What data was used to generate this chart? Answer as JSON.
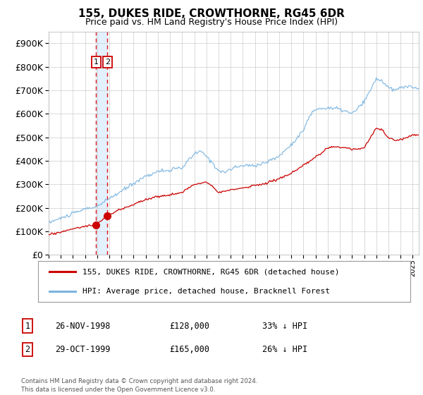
{
  "title": "155, DUKES RIDE, CROWTHORNE, RG45 6DR",
  "subtitle": "Price paid vs. HM Land Registry's House Price Index (HPI)",
  "legend_entry1": "155, DUKES RIDE, CROWTHORNE, RG45 6DR (detached house)",
  "legend_entry2": "HPI: Average price, detached house, Bracknell Forest",
  "sale1_date": "26-NOV-1998",
  "sale1_price": 128000,
  "sale1_label": "33% ↓ HPI",
  "sale2_date": "29-OCT-1999",
  "sale2_price": 165000,
  "sale2_label": "26% ↓ HPI",
  "footer": "Contains HM Land Registry data © Crown copyright and database right 2024.\nThis data is licensed under the Open Government Licence v3.0.",
  "hpi_color": "#7ab4e0",
  "price_color": "#cc0000",
  "marker_color": "#cc0000",
  "vline_color": "#dd0000",
  "shade_color": "#ddeeff",
  "ylim": [
    0,
    950000
  ],
  "yticks": [
    0,
    100000,
    200000,
    300000,
    400000,
    500000,
    600000,
    700000,
    800000,
    900000
  ],
  "background_color": "#ffffff",
  "grid_color": "#cccccc",
  "sale1_year": 1998.917,
  "sale2_year": 1999.833,
  "hpi_knots_x": [
    1995,
    1996,
    1997,
    1998,
    1998.9,
    1999.5,
    2000,
    2001,
    2002,
    2003,
    2004,
    2005,
    2006,
    2007,
    2007.5,
    2008,
    2008.5,
    2009,
    2009.5,
    2010,
    2011,
    2012,
    2013,
    2014,
    2015,
    2016,
    2016.5,
    2017,
    2018,
    2019,
    2020,
    2021,
    2021.5,
    2022,
    2022.5,
    2023,
    2023.5,
    2024,
    2024.5,
    2025
  ],
  "hpi_knots_y": [
    138000,
    155000,
    175000,
    195000,
    205000,
    220000,
    240000,
    270000,
    305000,
    335000,
    355000,
    360000,
    370000,
    430000,
    440000,
    420000,
    390000,
    360000,
    350000,
    365000,
    380000,
    380000,
    395000,
    420000,
    470000,
    530000,
    590000,
    620000,
    625000,
    620000,
    600000,
    650000,
    700000,
    750000,
    740000,
    710000,
    700000,
    710000,
    720000,
    710000
  ],
  "price_knots_x": [
    1995,
    1996,
    1997,
    1998,
    1998.917,
    1999.833,
    2001,
    2002,
    2003,
    2004,
    2005,
    2006,
    2007,
    2008,
    2008.5,
    2009,
    2010,
    2011,
    2012,
    2013,
    2014,
    2015,
    2016,
    2017,
    2018,
    2019,
    2020,
    2021,
    2022,
    2022.5,
    2023,
    2023.5,
    2024,
    2025
  ],
  "price_knots_y": [
    85000,
    97000,
    110000,
    122000,
    128000,
    165000,
    195000,
    215000,
    235000,
    248000,
    255000,
    265000,
    300000,
    310000,
    295000,
    265000,
    275000,
    285000,
    295000,
    305000,
    325000,
    345000,
    380000,
    415000,
    455000,
    460000,
    450000,
    455000,
    540000,
    530000,
    495000,
    490000,
    490000,
    510000
  ]
}
